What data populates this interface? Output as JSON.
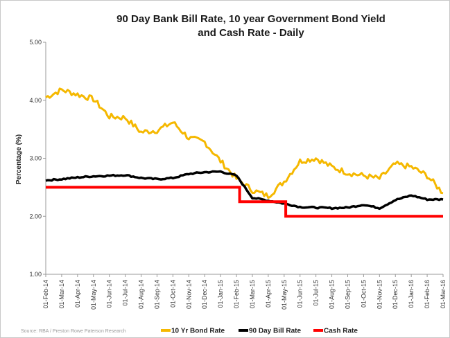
{
  "chart_data": {
    "type": "line",
    "title_line1": "90 Day Bank Bill Rate, 10 year Government Bond Yield",
    "title_line2": "and Cash Rate - Daily",
    "ylabel": "Percentage (%)",
    "ylim": [
      1.0,
      5.0
    ],
    "yticks": [
      "1.00",
      "2.00",
      "3.00",
      "4.00",
      "5.00"
    ],
    "grid": false,
    "legend_position": "bottom",
    "source": "Source: RBA / Preston Rowe Paterson Research",
    "x_labels": [
      "01-Feb-14",
      "01-Mar-14",
      "01-Apr-14",
      "01-May-14",
      "01-Jun-14",
      "01-Jul-14",
      "01-Aug-14",
      "01-Sep-14",
      "01-Oct-14",
      "01-Nov-14",
      "01-Dec-14",
      "01-Jan-15",
      "01-Feb-15",
      "01-Mar-15",
      "01-Apr-15",
      "01-May-15",
      "01-Jun-15",
      "01-Jul-15",
      "01-Aug-15",
      "01-Sep-15",
      "01-Oct-15",
      "01-Nov-15",
      "01-Dec-15",
      "01-Jan-16",
      "01-Feb-16",
      "01-Mar-16"
    ],
    "series": [
      {
        "name": "10 Yr Bond Rate",
        "color": "#f5b800",
        "values": [
          4.05,
          4.18,
          4.1,
          4.02,
          3.72,
          3.7,
          3.45,
          3.48,
          3.62,
          3.35,
          3.28,
          2.95,
          2.65,
          2.45,
          2.35,
          2.6,
          2.95,
          3.0,
          2.85,
          2.75,
          2.7,
          2.65,
          2.9,
          2.85,
          2.7,
          2.4
        ],
        "jitter": 0.05
      },
      {
        "name": "90 Day Bill Rate",
        "color": "#000000",
        "values": [
          2.62,
          2.64,
          2.67,
          2.69,
          2.7,
          2.71,
          2.66,
          2.64,
          2.66,
          2.73,
          2.76,
          2.77,
          2.7,
          2.32,
          2.27,
          2.22,
          2.16,
          2.15,
          2.14,
          2.15,
          2.2,
          2.14,
          2.28,
          2.36,
          2.29,
          2.29
        ],
        "jitter": 0.012
      },
      {
        "name": "Cash Rate",
        "color": "#ff0000",
        "steps": [
          {
            "from": 0,
            "to": 12.2,
            "value": 2.5
          },
          {
            "from": 12.2,
            "to": 15.1,
            "value": 2.25
          },
          {
            "from": 15.1,
            "to": 25,
            "value": 2.0
          }
        ]
      }
    ]
  }
}
